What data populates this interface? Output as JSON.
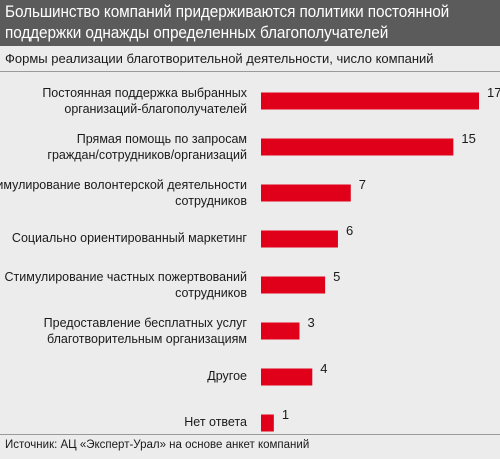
{
  "title": "Большинство компаний придерживаются политики постоянной поддержки однажды определенных благополучателей",
  "subtitle": "Формы реализации благотворительной деятельности, число компаний",
  "source": "Источник: АЦ «Эксперт-Урал» на основе анкет компаний",
  "colors": {
    "bar": "#e0001a",
    "header": "#5b5b5b",
    "background": "#ececec"
  },
  "chart_data": {
    "type": "bar",
    "orientation": "horizontal",
    "title": "Большинство компаний придерживаются политики постоянной поддержки однажды определенных благополучателей",
    "subtitle": "Формы реализации благотворительной деятельности, число компаний",
    "categories": [
      [
        "Постоянная поддержка выбранных",
        "организаций-благополучателей"
      ],
      [
        "Прямая помощь по запросам",
        "граждан/сотрудников/организаций"
      ],
      [
        "Стимулирование волонтерской деятельности",
        "сотрудников"
      ],
      [
        "Социально ориентированный маркетинг"
      ],
      [
        "Стимулирование частных пожертвований",
        "сотрудников"
      ],
      [
        "Предоставление бесплатных услуг",
        "благотворительным организациям"
      ],
      [
        "Другое"
      ],
      [
        "Нет ответа"
      ]
    ],
    "values": [
      17,
      15,
      7,
      6,
      5,
      3,
      4,
      1
    ],
    "xlim": [
      0,
      17
    ],
    "grid": false,
    "legend": "none"
  }
}
